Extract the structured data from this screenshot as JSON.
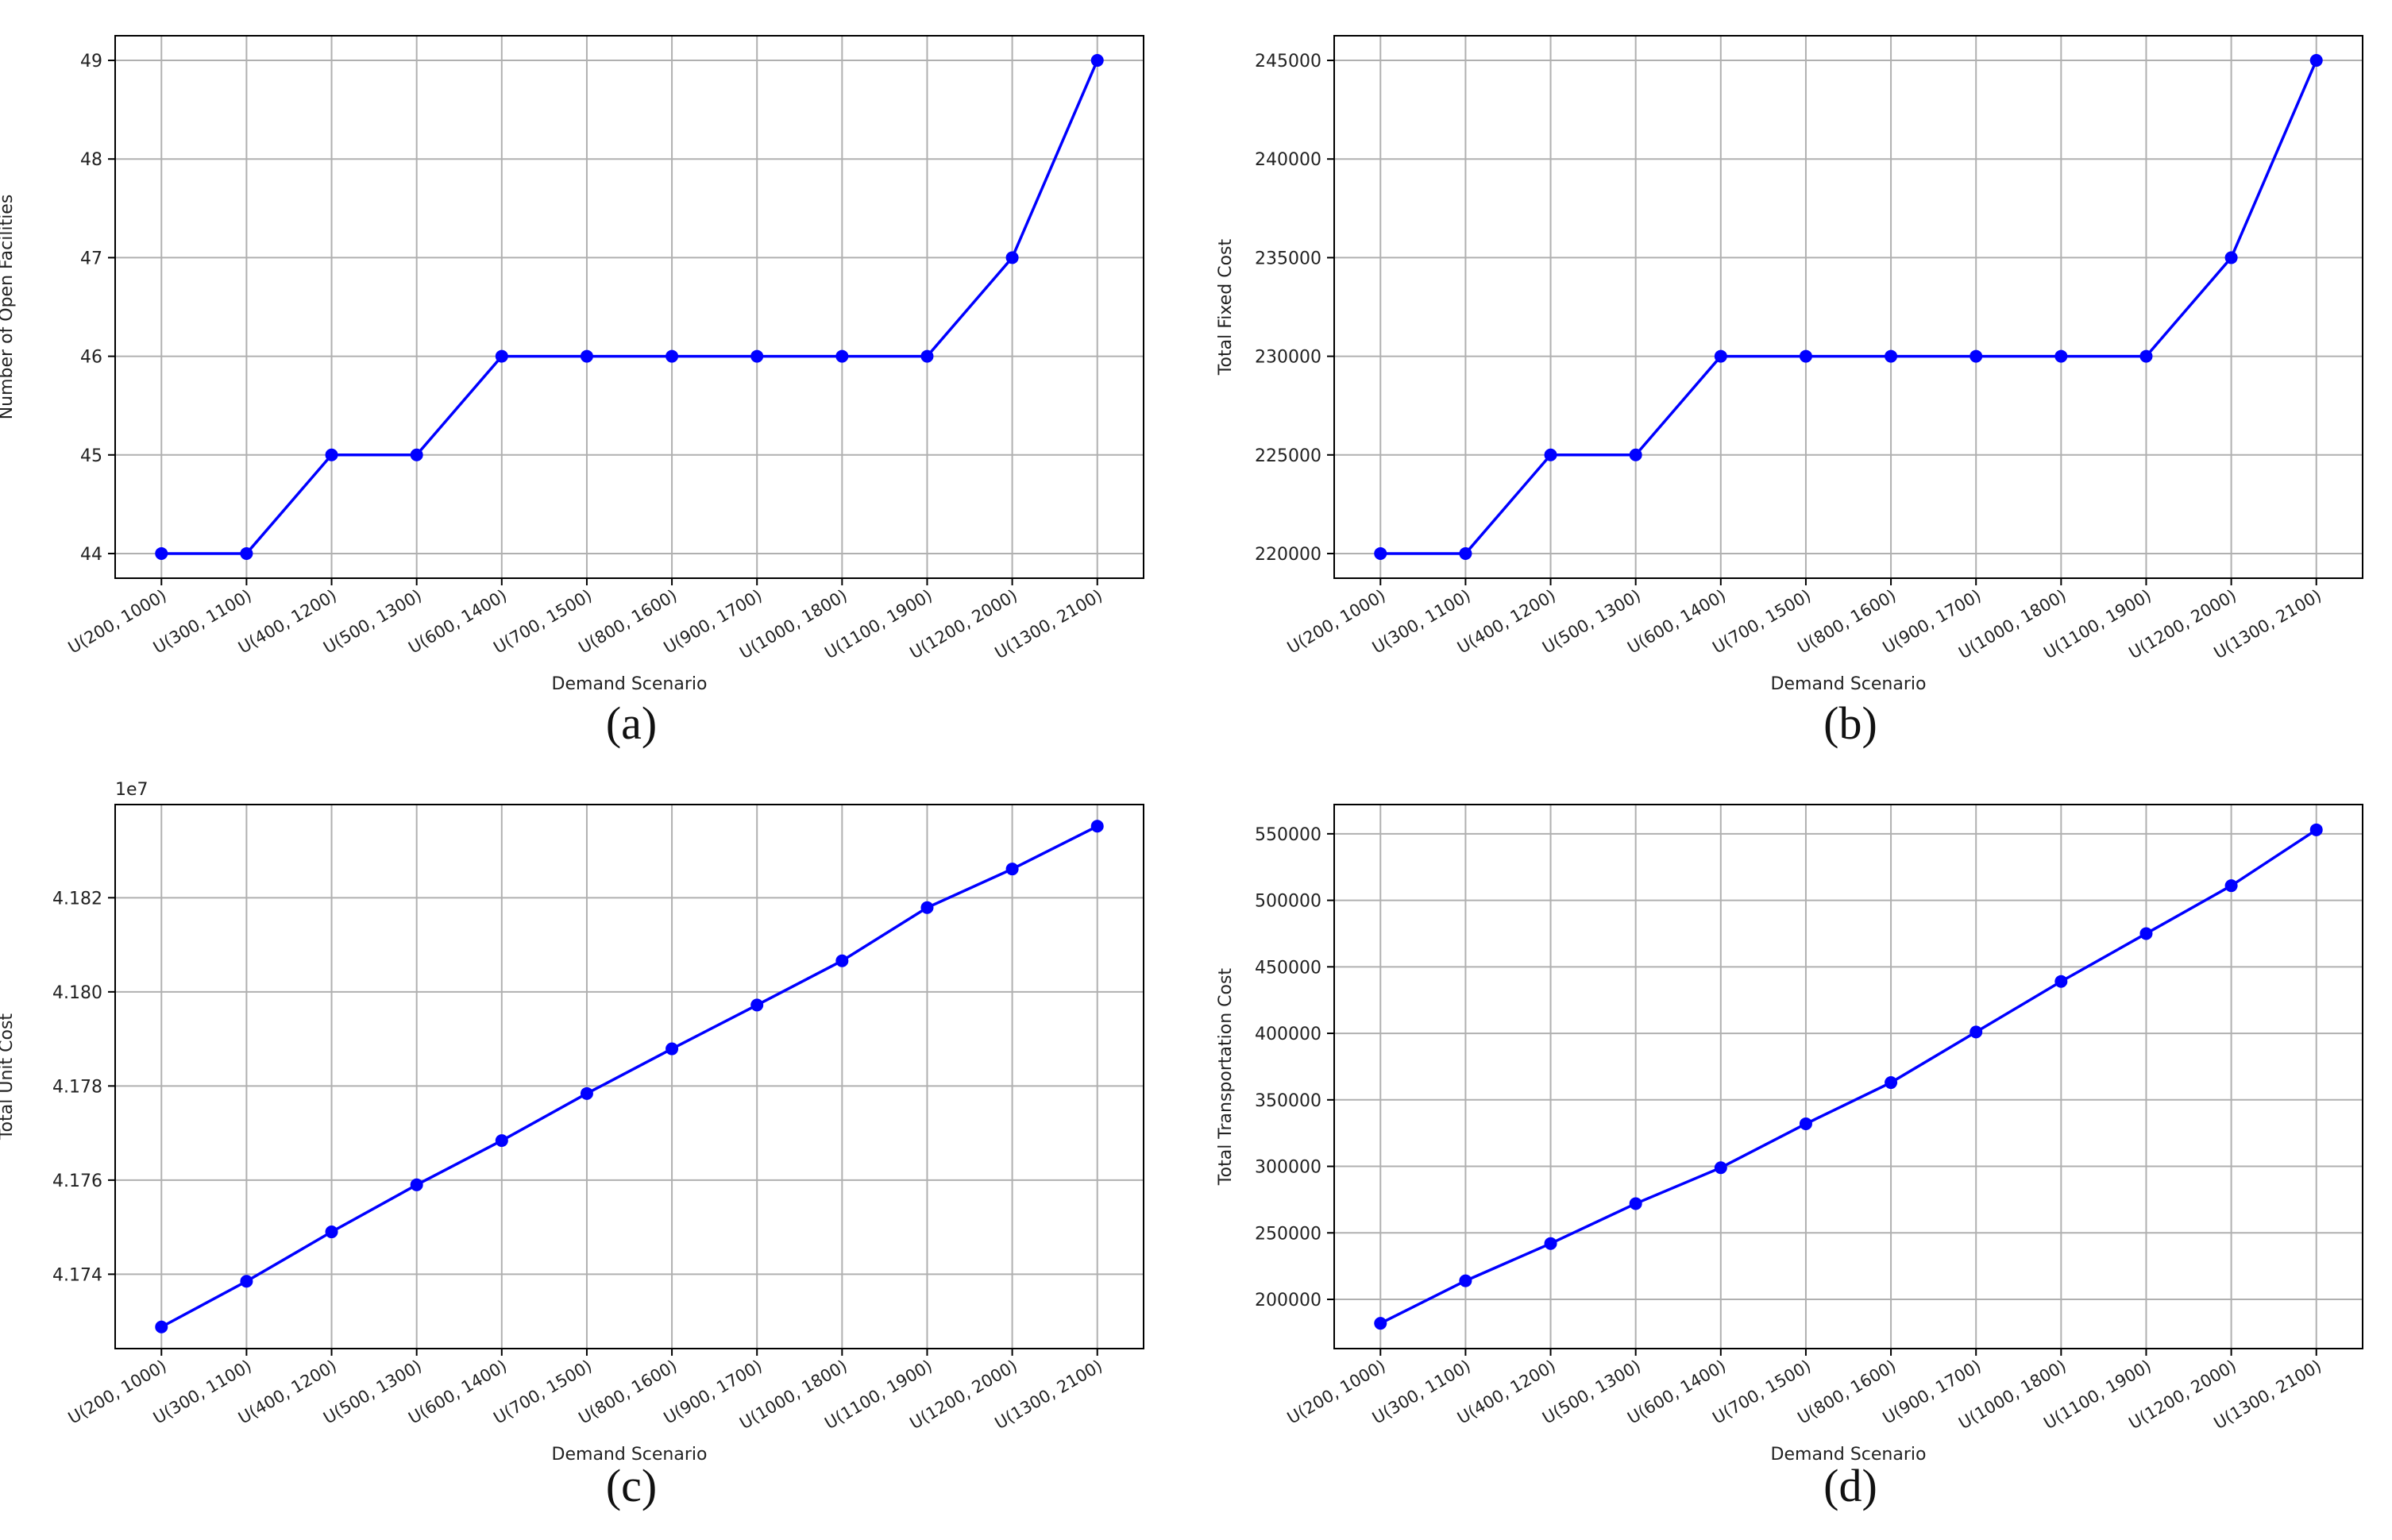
{
  "figure": {
    "accent_color": "#0000ff",
    "grid_color": "#b0b0b0"
  },
  "chart_data": [
    {
      "type": "line",
      "caption": "(a)",
      "xlabel": "Demand Scenario",
      "ylabel": "Number of Open Facilities",
      "categories": [
        "U(200, 1000)",
        "U(300, 1100)",
        "U(400, 1200)",
        "U(500, 1300)",
        "U(600, 1400)",
        "U(700, 1500)",
        "U(800, 1600)",
        "U(900, 1700)",
        "U(1000, 1800)",
        "U(1100, 1900)",
        "U(1200, 2000)",
        "U(1300, 2100)"
      ],
      "values": [
        44,
        44,
        45,
        45,
        46,
        46,
        46,
        46,
        46,
        46,
        47,
        49
      ],
      "yticks": [
        44,
        45,
        46,
        47,
        48,
        49
      ],
      "ytick_labels": [
        "44",
        "45",
        "46",
        "47",
        "48",
        "49"
      ],
      "ylim": [
        43.75,
        49.25
      ],
      "offset_label": "",
      "grid": true,
      "marker": "circle",
      "color": "#0000ff"
    },
    {
      "type": "line",
      "caption": "(b)",
      "xlabel": "Demand Scenario",
      "ylabel": "Total Fixed Cost",
      "categories": [
        "U(200, 1000)",
        "U(300, 1100)",
        "U(400, 1200)",
        "U(500, 1300)",
        "U(600, 1400)",
        "U(700, 1500)",
        "U(800, 1600)",
        "U(900, 1700)",
        "U(1000, 1800)",
        "U(1100, 1900)",
        "U(1200, 2000)",
        "U(1300, 2100)"
      ],
      "values": [
        220000,
        220000,
        225000,
        225000,
        230000,
        230000,
        230000,
        230000,
        230000,
        230000,
        235000,
        245000
      ],
      "yticks": [
        220000,
        225000,
        230000,
        235000,
        240000,
        245000
      ],
      "ytick_labels": [
        "220000",
        "225000",
        "230000",
        "235000",
        "240000",
        "245000"
      ],
      "ylim": [
        218750,
        246250
      ],
      "offset_label": "",
      "grid": true,
      "marker": "circle",
      "color": "#0000ff"
    },
    {
      "type": "line",
      "caption": "(c)",
      "xlabel": "Demand Scenario",
      "ylabel": "Total Unit Cost",
      "categories": [
        "U(200, 1000)",
        "U(300, 1100)",
        "U(400, 1200)",
        "U(500, 1300)",
        "U(600, 1400)",
        "U(700, 1500)",
        "U(800, 1600)",
        "U(900, 1700)",
        "U(1000, 1800)",
        "U(1100, 1900)",
        "U(1200, 2000)",
        "U(1300, 2100)"
      ],
      "values": [
        41728800,
        41738500,
        41749000,
        41759000,
        41768400,
        41778400,
        41787900,
        41797200,
        41806600,
        41817900,
        41826100,
        41835200
      ],
      "yticks": [
        41740000,
        41760000,
        41780000,
        41800000,
        41820000
      ],
      "ytick_labels": [
        "4.174",
        "4.176",
        "4.178",
        "4.180",
        "4.182"
      ],
      "ylim": [
        41724200,
        41839800
      ],
      "offset_label": "1e7",
      "grid": true,
      "marker": "circle",
      "color": "#0000ff"
    },
    {
      "type": "line",
      "caption": "(d)",
      "xlabel": "Demand Scenario",
      "ylabel": "Total Transportation Cost",
      "categories": [
        "U(200, 1000)",
        "U(300, 1100)",
        "U(400, 1200)",
        "U(500, 1300)",
        "U(600, 1400)",
        "U(700, 1500)",
        "U(800, 1600)",
        "U(900, 1700)",
        "U(1000, 1800)",
        "U(1100, 1900)",
        "U(1200, 2000)",
        "U(1300, 2100)"
      ],
      "values": [
        182000,
        214000,
        242000,
        272000,
        299000,
        332000,
        363000,
        401000,
        439000,
        475000,
        511000,
        553000
      ],
      "yticks": [
        200000,
        250000,
        300000,
        350000,
        400000,
        450000,
        500000,
        550000
      ],
      "ytick_labels": [
        "200000",
        "250000",
        "300000",
        "350000",
        "400000",
        "450000",
        "500000",
        "550000"
      ],
      "ylim": [
        163000,
        572000
      ],
      "offset_label": "",
      "grid": true,
      "marker": "circle",
      "color": "#0000ff"
    }
  ]
}
